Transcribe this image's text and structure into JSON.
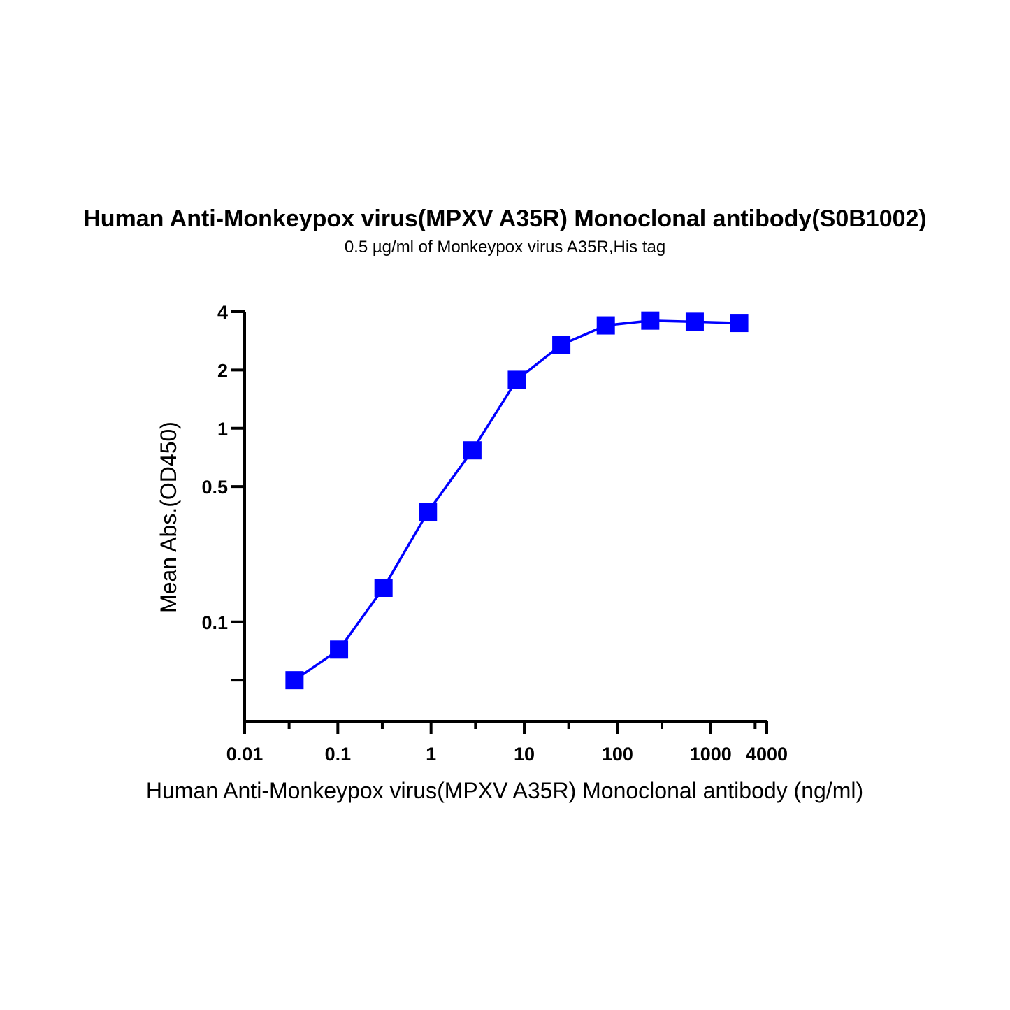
{
  "chart_data": {
    "type": "line",
    "title": "Human Anti-Monkeypox virus(MPXV A35R) Monoclonal antibody(S0B1002)",
    "subtitle": "0.5 µg/ml of Monkeypox virus A35R,His tag",
    "xlabel": "Human Anti-Monkeypox virus(MPXV A35R) Monoclonal antibody (ng/ml)",
    "ylabel": "Mean Abs.(OD450)",
    "x_scale": "log",
    "y_scale": "log",
    "xlim": [
      0.01,
      4000
    ],
    "ylim": [
      0.03,
      4
    ],
    "x_ticks": [
      {
        "value": 0.01,
        "label": "0.01"
      },
      {
        "value": 0.1,
        "label": "0.1"
      },
      {
        "value": 1,
        "label": "1"
      },
      {
        "value": 10,
        "label": "10"
      },
      {
        "value": 100,
        "label": "100"
      },
      {
        "value": 1000,
        "label": "1000"
      },
      {
        "value": 4000,
        "label": "4000"
      }
    ],
    "x_minor_ticks": [
      0.03,
      0.3,
      3,
      30,
      300,
      3000
    ],
    "y_ticks": [
      {
        "value": 0.05,
        "label": ""
      },
      {
        "value": 0.1,
        "label": "0.1"
      },
      {
        "value": 0.5,
        "label": "0.5"
      },
      {
        "value": 1,
        "label": "1"
      },
      {
        "value": 2,
        "label": "2"
      },
      {
        "value": 4,
        "label": "4"
      }
    ],
    "series": [
      {
        "color": "#0000ff",
        "marker": "square",
        "x": [
          0.0343,
          0.103,
          0.309,
          0.926,
          2.78,
          8.33,
          25,
          75,
          225,
          675,
          2025
        ],
        "y": [
          0.05,
          0.072,
          0.15,
          0.37,
          0.77,
          1.78,
          2.7,
          3.4,
          3.6,
          3.55,
          3.5
        ]
      }
    ],
    "grid": false,
    "legend": "none"
  }
}
